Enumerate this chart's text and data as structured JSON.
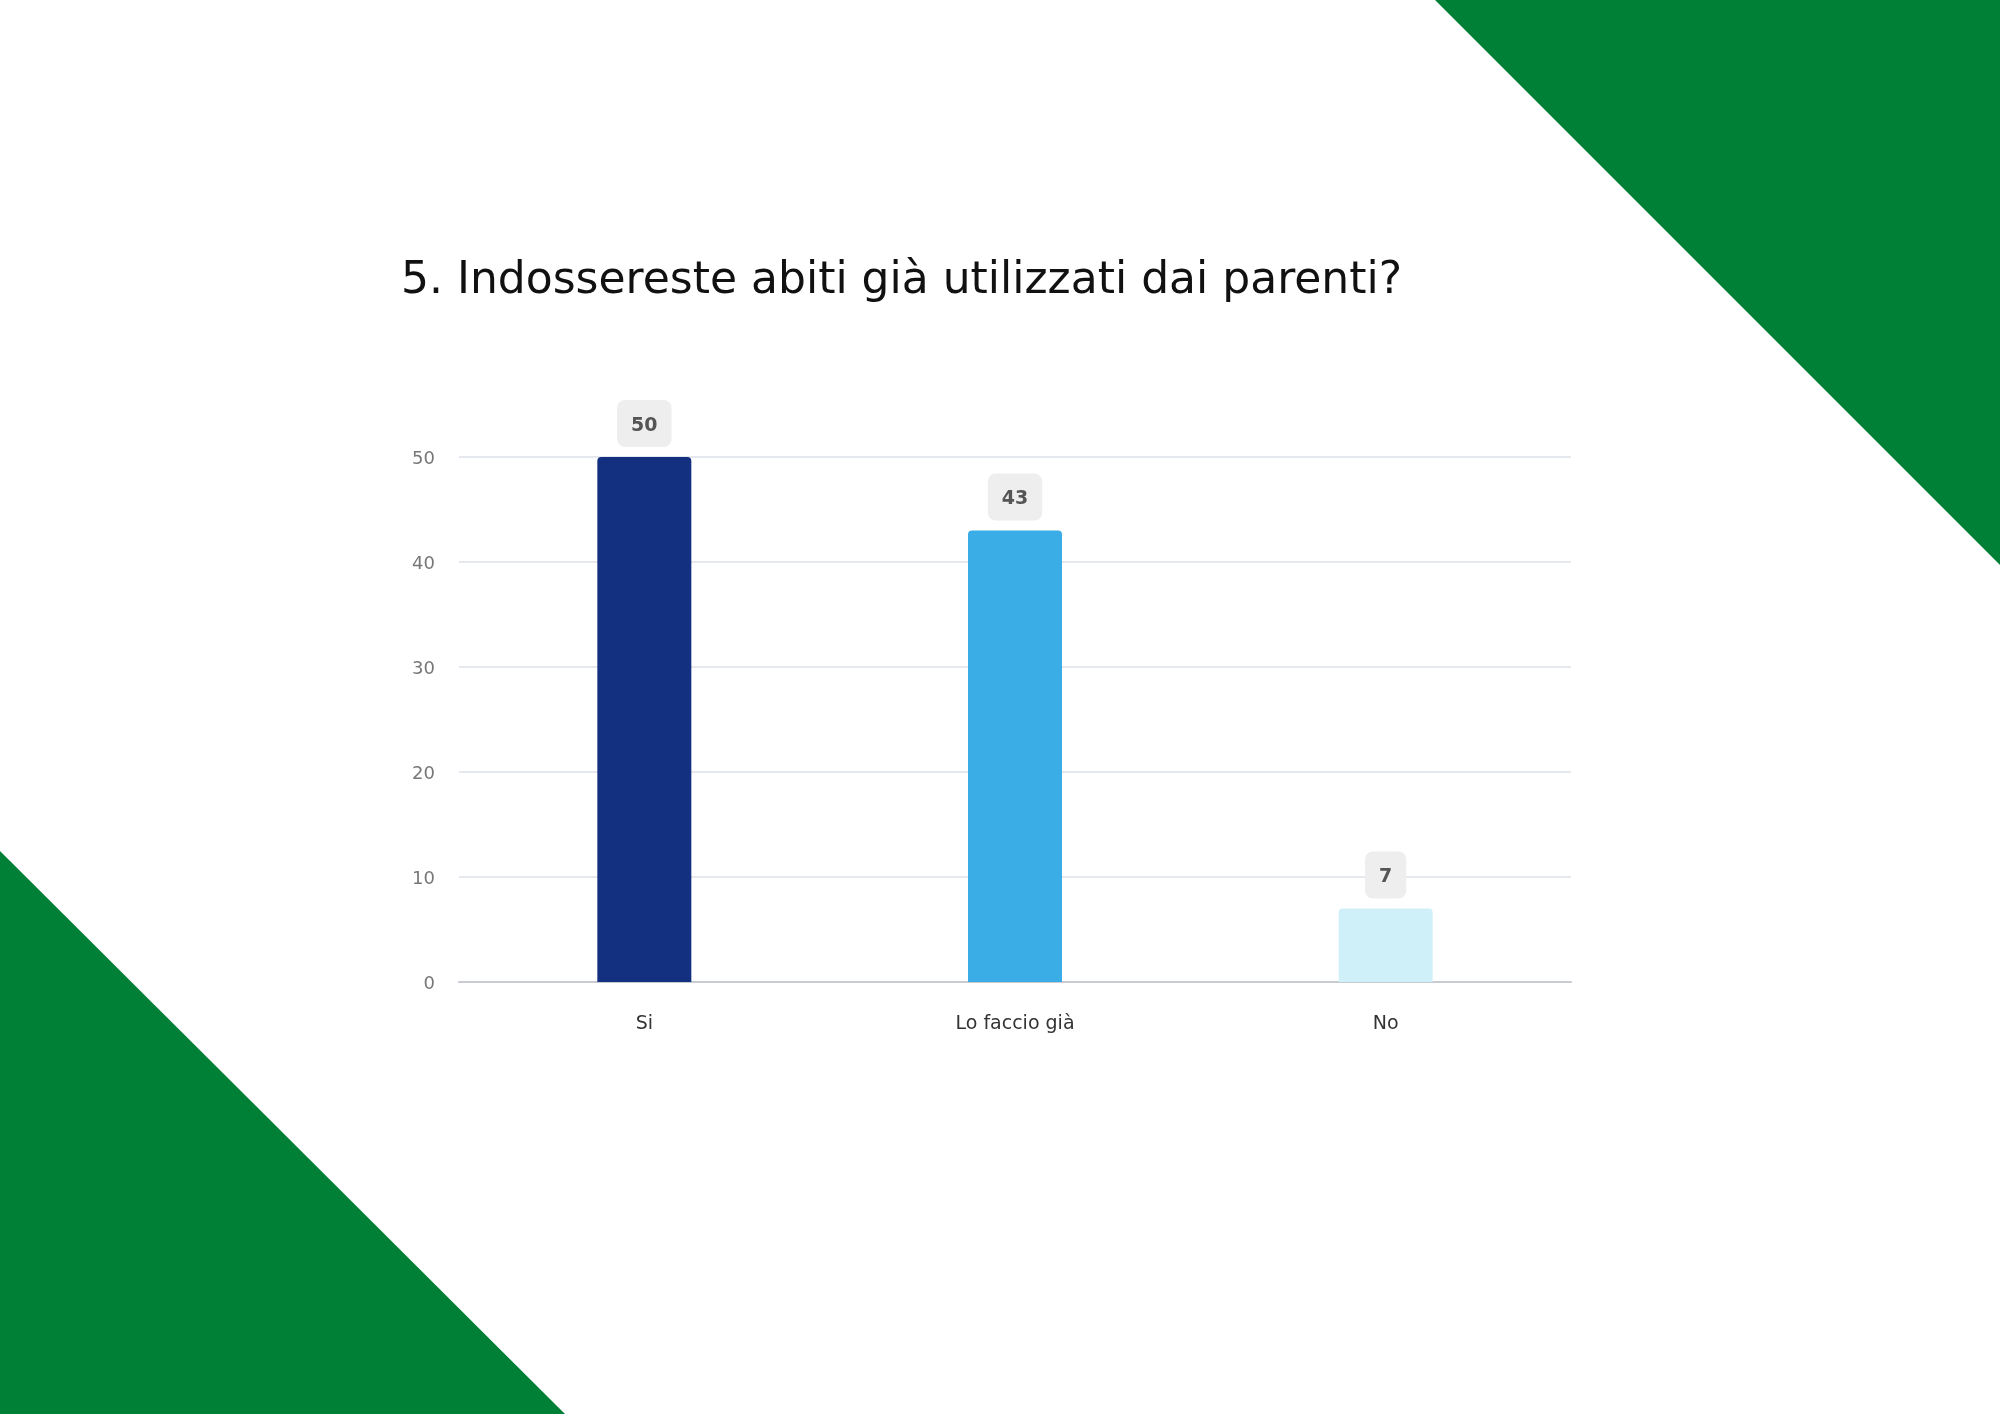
{
  "chart_data": {
    "type": "bar",
    "title": "5. Indossereste abiti già utilizzati dai parenti?",
    "categories": [
      "Si",
      "Lo faccio già",
      "No"
    ],
    "values": [
      50,
      43,
      7
    ],
    "colors": [
      "#122f80",
      "#3aade6",
      "#cff0f9"
    ],
    "ylim": [
      0,
      50
    ],
    "yticks": [
      0,
      10,
      20,
      30,
      40,
      50
    ],
    "grid": "y",
    "data_labels": true
  }
}
